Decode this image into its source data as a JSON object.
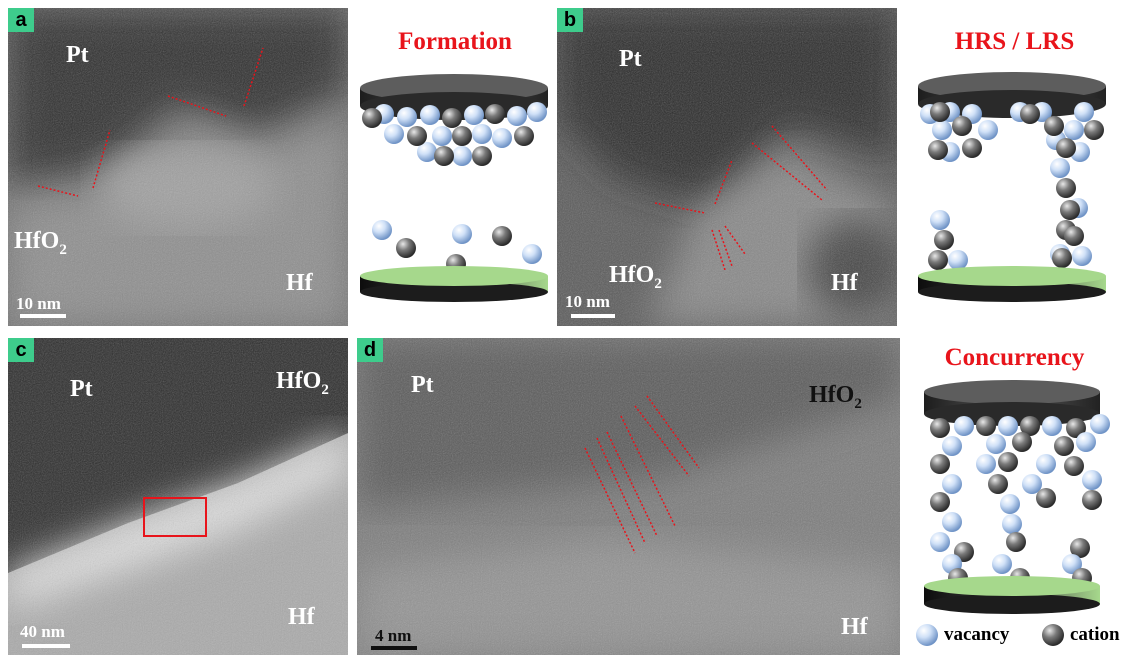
{
  "panels": {
    "a": {
      "tag": "a",
      "top": "Pt",
      "oxide": "HfO",
      "oxide_sub": "2",
      "metal": "Hf",
      "scale": "10 nm"
    },
    "b": {
      "tag": "b",
      "top": "Pt",
      "oxide": "HfO",
      "oxide_sub": "2",
      "metal": "Hf",
      "scale": "10 nm"
    },
    "c": {
      "tag": "c",
      "top": "Pt",
      "oxide": "HfO",
      "oxide_sub": "2",
      "metal": "Hf",
      "scale": "40 nm"
    },
    "d": {
      "tag": "d",
      "top": "Pt",
      "oxide": "HfO",
      "oxide_sub": "2",
      "metal": "Hf",
      "scale": "4 nm"
    }
  },
  "schematics": {
    "formation": "Formation",
    "hrs_lrs": "HRS / LRS",
    "concurrency": "Concurrency"
  },
  "legend": {
    "vacancy": "vacancy",
    "cation": "cation"
  },
  "colors": {
    "title_red": "#e8141b",
    "tag_green": "#3ecc8c",
    "vacancy_sphere": "#b9d3f0",
    "cation_sphere": "#6a6a6a",
    "bottom_electrode": "#a6d88c",
    "top_electrode": "#555555",
    "guide_lines": "#e8141b"
  }
}
